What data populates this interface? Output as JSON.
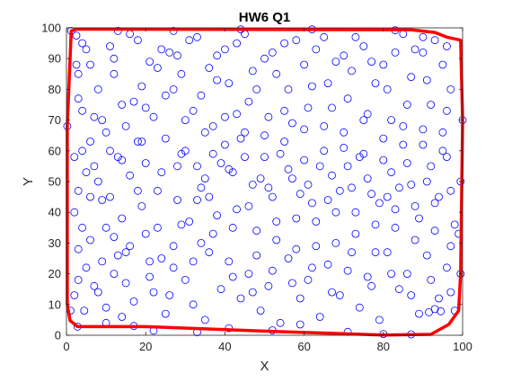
{
  "chart_data": {
    "type": "scatter",
    "title": "HW6 Q1",
    "xlabel": "X",
    "ylabel": "Y",
    "xlim": [
      0,
      100
    ],
    "ylim": [
      0,
      100
    ],
    "x_ticks": [
      "0",
      "20",
      "40",
      "60",
      "80",
      "100"
    ],
    "y_ticks": [
      "0",
      "10",
      "20",
      "30",
      "40",
      "50",
      "60",
      "70",
      "80",
      "90",
      "100"
    ],
    "grid": false,
    "legend": "none",
    "point_marker": "open circle",
    "point_color": "#0000ff",
    "hull_color": "#ff0000",
    "series": [
      {
        "type": "scatter",
        "points": [
          [
            0.2,
            68
          ],
          [
            1.2,
            99
          ],
          [
            2.5,
            97.5
          ],
          [
            4,
            95
          ],
          [
            3,
            77
          ],
          [
            4,
            60
          ],
          [
            2,
            40
          ],
          [
            3,
            18
          ],
          [
            1,
            8
          ],
          [
            2.8,
            2.8
          ],
          [
            3,
            28
          ],
          [
            4.5,
            8
          ],
          [
            2,
            13
          ],
          [
            4,
            35
          ],
          [
            6,
            88
          ],
          [
            7,
            71
          ],
          [
            5,
            53
          ],
          [
            8,
            50
          ],
          [
            6,
            31
          ],
          [
            9,
            24
          ],
          [
            7,
            16
          ],
          [
            10,
            9
          ],
          [
            11,
            94
          ],
          [
            12,
            85
          ],
          [
            10,
            66
          ],
          [
            13,
            58
          ],
          [
            11,
            45
          ],
          [
            14,
            38
          ],
          [
            12,
            20
          ],
          [
            15,
            27
          ],
          [
            14,
            6
          ],
          [
            16,
            98
          ],
          [
            17,
            76
          ],
          [
            18,
            63
          ],
          [
            16,
            52
          ],
          [
            19,
            42
          ],
          [
            17,
            11
          ],
          [
            20,
            33
          ],
          [
            21,
            89
          ],
          [
            22,
            71
          ],
          [
            20,
            56
          ],
          [
            23,
            47
          ],
          [
            24,
            25
          ],
          [
            22,
            14
          ],
          [
            25,
            7
          ],
          [
            26,
            92
          ],
          [
            27,
            80
          ],
          [
            25,
            64
          ],
          [
            28,
            55
          ],
          [
            29,
            36
          ],
          [
            27,
            22
          ],
          [
            30,
            18
          ],
          [
            31,
            96
          ],
          [
            32,
            73
          ],
          [
            30,
            60
          ],
          [
            33,
            44
          ],
          [
            34,
            30
          ],
          [
            32,
            10
          ],
          [
            35,
            5
          ],
          [
            36,
            87
          ],
          [
            37,
            68
          ],
          [
            35,
            51
          ],
          [
            38,
            39
          ],
          [
            36,
            27
          ],
          [
            39,
            15
          ],
          [
            40,
            93
          ],
          [
            41,
            82
          ],
          [
            40,
            62
          ],
          [
            42,
            53
          ],
          [
            43,
            41
          ],
          [
            41,
            24
          ],
          [
            44,
            12
          ],
          [
            45,
            98
          ],
          [
            46,
            76
          ],
          [
            45,
            66
          ],
          [
            47,
            49
          ],
          [
            48,
            34
          ],
          [
            46,
            20
          ],
          [
            49,
            8
          ],
          [
            50,
            90
          ],
          [
            51,
            71
          ],
          [
            50,
            58
          ],
          [
            52,
            45
          ],
          [
            53,
            31
          ],
          [
            51,
            16
          ],
          [
            54,
            4
          ],
          [
            55,
            95
          ],
          [
            56,
            80
          ],
          [
            55,
            63
          ],
          [
            57,
            51
          ],
          [
            58,
            38
          ],
          [
            56,
            25
          ],
          [
            59,
            12
          ],
          [
            60,
            88
          ],
          [
            61,
            74
          ],
          [
            60,
            57
          ],
          [
            62,
            43
          ],
          [
            63,
            29
          ],
          [
            61,
            18
          ],
          [
            64,
            6
          ],
          [
            65,
            97
          ],
          [
            66,
            82
          ],
          [
            65,
            68
          ],
          [
            67,
            52
          ],
          [
            68,
            40
          ],
          [
            66,
            23
          ],
          [
            69,
            13
          ],
          [
            70,
            91
          ],
          [
            71,
            77
          ],
          [
            70,
            61
          ],
          [
            72,
            48
          ],
          [
            73,
            33
          ],
          [
            71,
            21
          ],
          [
            74,
            9
          ],
          [
            75,
            94
          ],
          [
            76,
            72
          ],
          [
            75,
            59
          ],
          [
            77,
            46
          ],
          [
            78,
            36
          ],
          [
            76,
            19
          ],
          [
            79,
            5
          ],
          [
            80,
            88
          ],
          [
            81,
            80
          ],
          [
            80,
            64
          ],
          [
            82,
            53
          ],
          [
            83,
            41
          ],
          [
            81,
            27
          ],
          [
            84,
            15
          ],
          [
            85,
            98
          ],
          [
            86,
            75
          ],
          [
            85,
            62
          ],
          [
            87,
            49
          ],
          [
            88,
            31
          ],
          [
            86,
            20
          ],
          [
            89,
            7
          ],
          [
            90,
            92
          ],
          [
            91,
            83
          ],
          [
            90,
            67
          ],
          [
            92,
            55
          ],
          [
            93,
            43
          ],
          [
            91,
            26
          ],
          [
            94,
            12
          ],
          [
            95,
            88
          ],
          [
            96,
            73
          ],
          [
            95,
            60
          ],
          [
            97,
            47
          ],
          [
            98,
            36
          ],
          [
            96,
            22
          ],
          [
            98,
            8
          ],
          [
            99.5,
            50
          ],
          [
            100,
            70
          ],
          [
            99,
            33
          ],
          [
            99.5,
            20
          ],
          [
            93,
            8.5
          ],
          [
            91.5,
            7.5
          ],
          [
            94.5,
            7.8
          ],
          [
            80,
            0.4
          ],
          [
            87,
            0.3
          ],
          [
            71,
            1.1
          ],
          [
            52,
            1.6
          ],
          [
            33,
            1
          ],
          [
            41,
            2.3
          ],
          [
            59,
            3.5
          ],
          [
            17,
            3
          ],
          [
            22,
            1.5
          ],
          [
            8,
            14
          ],
          [
            12,
            32
          ],
          [
            14,
            75
          ],
          [
            19,
            81
          ],
          [
            24,
            93
          ],
          [
            29,
            85
          ],
          [
            34,
            78
          ],
          [
            38,
            83
          ],
          [
            43,
            72
          ],
          [
            47,
            86
          ],
          [
            52,
            92
          ],
          [
            57,
            69
          ],
          [
            62,
            81
          ],
          [
            67,
            74
          ],
          [
            72,
            86
          ],
          [
            77,
            89
          ],
          [
            82,
            70
          ],
          [
            87,
            84
          ],
          [
            92,
            75
          ],
          [
            97,
            80
          ],
          [
            3,
            85
          ],
          [
            6,
            63
          ],
          [
            9,
            44
          ],
          [
            13,
            26
          ],
          [
            18,
            47
          ],
          [
            23,
            35
          ],
          [
            28,
            44
          ],
          [
            33,
            55
          ],
          [
            37,
            59
          ],
          [
            42,
            35
          ],
          [
            48,
            26
          ],
          [
            53,
            37
          ],
          [
            58,
            28
          ],
          [
            63,
            37
          ],
          [
            68,
            30
          ],
          [
            73,
            40
          ],
          [
            78,
            27
          ],
          [
            83,
            35
          ],
          [
            88,
            42
          ],
          [
            93,
            34
          ],
          [
            97,
            29
          ],
          [
            5,
            22
          ],
          [
            10,
            4
          ],
          [
            15,
            17
          ],
          [
            21,
            24
          ],
          [
            26,
            13
          ],
          [
            31,
            37
          ],
          [
            36,
            45
          ],
          [
            41,
            54
          ],
          [
            46,
            42
          ],
          [
            51,
            48
          ],
          [
            56,
            54
          ],
          [
            61,
            49
          ],
          [
            66,
            44
          ],
          [
            71,
            55
          ],
          [
            76,
            51
          ],
          [
            81,
            45
          ],
          [
            86,
            56
          ],
          [
            91,
            50
          ],
          [
            96,
            58
          ],
          [
            4,
            73
          ],
          [
            8,
            80
          ],
          [
            12,
            90
          ],
          [
            18,
            96
          ],
          [
            23,
            87
          ],
          [
            28,
            91
          ],
          [
            33,
            97
          ],
          [
            38,
            91
          ],
          [
            43,
            95
          ],
          [
            48,
            80
          ],
          [
            53,
            85
          ],
          [
            58,
            96
          ],
          [
            63,
            93
          ],
          [
            68,
            89
          ],
          [
            73,
            97
          ],
          [
            78,
            82
          ],
          [
            83,
            92
          ],
          [
            88,
            93
          ],
          [
            93,
            96
          ],
          [
            96,
            94
          ],
          [
            7,
            55
          ],
          [
            11,
            60
          ],
          [
            15,
            68
          ],
          [
            20,
            74
          ],
          [
            25,
            78
          ],
          [
            30,
            70
          ],
          [
            35,
            66
          ],
          [
            40,
            71
          ],
          [
            45,
            58
          ],
          [
            50,
            65
          ],
          [
            55,
            73
          ],
          [
            60,
            67
          ],
          [
            65,
            60
          ],
          [
            70,
            66
          ],
          [
            75,
            70
          ],
          [
            80,
            57
          ],
          [
            85,
            68
          ],
          [
            90,
            62
          ],
          [
            95,
            66
          ],
          [
            6,
            45
          ],
          [
            10,
            35
          ],
          [
            16,
            29
          ],
          [
            21,
            19
          ],
          [
            27,
            29
          ],
          [
            32,
            24
          ],
          [
            37,
            33
          ],
          [
            42,
            19
          ],
          [
            47,
            14
          ],
          [
            52,
            21
          ],
          [
            57,
            17
          ],
          [
            62,
            22
          ],
          [
            67,
            14
          ],
          [
            72,
            27
          ],
          [
            77,
            16
          ],
          [
            82,
            20
          ],
          [
            87,
            13
          ],
          [
            92,
            18
          ],
          [
            97,
            14
          ],
          [
            9,
            70
          ],
          [
            14,
            57
          ],
          [
            19,
            63
          ],
          [
            24,
            53
          ],
          [
            29,
            59
          ],
          [
            34,
            48
          ],
          [
            39,
            56
          ],
          [
            44,
            64
          ],
          [
            49,
            51
          ],
          [
            54,
            59
          ],
          [
            59,
            46
          ],
          [
            64,
            55
          ],
          [
            69,
            47
          ],
          [
            74,
            58
          ],
          [
            79,
            43
          ],
          [
            84,
            48
          ],
          [
            89,
            38
          ],
          [
            94,
            45
          ],
          [
            2,
            58
          ],
          [
            3,
            47
          ],
          [
            2.5,
            88
          ],
          [
            5,
            93
          ],
          [
            13,
            99
          ],
          [
            27,
            99
          ],
          [
            44,
            99.5
          ],
          [
            62,
            99.5
          ],
          [
            83,
            99.2
          ],
          [
            90,
            97
          ]
        ]
      },
      {
        "type": "line",
        "name": "",
        "points": [
          [
            0.2,
            68
          ],
          [
            1.2,
            99
          ],
          [
            2.5,
            99.6
          ],
          [
            87,
            99.4
          ],
          [
            93,
            98.5
          ],
          [
            96,
            97
          ],
          [
            99.5,
            96
          ],
          [
            100,
            70
          ],
          [
            99.5,
            20
          ],
          [
            99,
            8
          ],
          [
            96.5,
            3.5
          ],
          [
            92,
            0.3
          ],
          [
            80,
            0.1
          ],
          [
            53,
            1.2
          ],
          [
            20,
            2.8
          ],
          [
            2.8,
            2.8
          ],
          [
            0.9,
            4.8
          ],
          [
            0.2,
            10
          ],
          [
            0.2,
            68
          ]
        ]
      }
    ]
  }
}
